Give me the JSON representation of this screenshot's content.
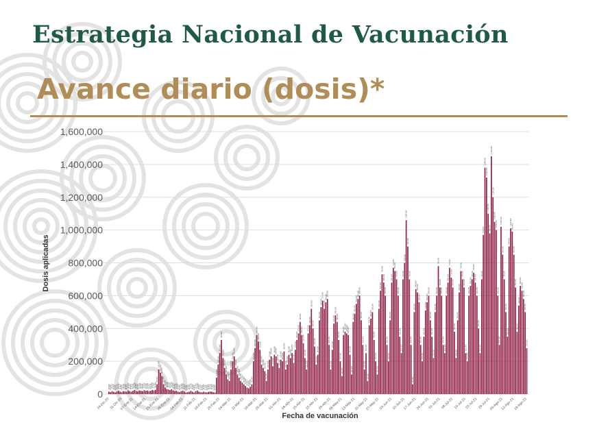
{
  "title": "Estrategia Nacional de Vacunación",
  "subtitle": "Avance diario (dosis)*",
  "colors": {
    "title": "#1f5a46",
    "subtitle": "#b08c57",
    "rule": "#b08c57",
    "bar": "#8f2145",
    "grid": "#dedede",
    "axis_text": "#595959",
    "pattern": "#e3e3e3"
  },
  "chart_data": {
    "type": "bar",
    "title": "",
    "xlabel": "Fecha de vacunación",
    "ylabel": "Dosis aplicadas",
    "ylim": [
      0,
      1600000
    ],
    "yticks": [
      0,
      200000,
      400000,
      600000,
      800000,
      1000000,
      1200000,
      1400000,
      1600000
    ],
    "ytick_labels": [
      "0",
      "200,000",
      "400,000",
      "600,000",
      "800,000",
      "1,000,000",
      "1,200,000",
      "1,400,000",
      "1,600,000"
    ],
    "grid": true,
    "legend": "none",
    "series": [
      {
        "values": [
          15000,
          12000,
          18000,
          14000,
          10000,
          16000,
          20000,
          15000,
          12000,
          18000,
          16000,
          14000,
          22000,
          18000,
          15000,
          20000,
          25000,
          18000,
          16000,
          22000,
          20000,
          18000,
          24000,
          20000,
          22000,
          18000,
          20000,
          25000,
          22000,
          26000,
          60000,
          150000,
          130000,
          110000,
          60000,
          40000,
          30000,
          28000,
          25000,
          30000,
          22000,
          18000,
          20000,
          15000,
          12000,
          18000,
          20000,
          15000,
          10000,
          12000,
          15000,
          20000,
          15000,
          10000,
          18000,
          22000,
          15000,
          12000,
          10000,
          15000,
          12000,
          10000,
          14000,
          16000,
          15000,
          12000,
          10000,
          100000,
          180000,
          250000,
          330000,
          220000,
          160000,
          120000,
          90000,
          80000,
          150000,
          200000,
          230000,
          160000,
          120000,
          100000,
          80000,
          70000,
          60000,
          50000,
          40000,
          35000,
          45000,
          60000,
          200000,
          280000,
          360000,
          320000,
          270000,
          180000,
          160000,
          140000,
          80000,
          150000,
          210000,
          230000,
          170000,
          240000,
          230000,
          190000,
          160000,
          210000,
          200000,
          260000,
          150000,
          180000,
          240000,
          220000,
          250000,
          190000,
          270000,
          330000,
          370000,
          440000,
          360000,
          310000,
          220000,
          150000,
          370000,
          420000,
          520000,
          400000,
          290000,
          180000,
          240000,
          450000,
          530000,
          570000,
          520000,
          560000,
          580000,
          300000,
          150000,
          270000,
          430000,
          480000,
          440000,
          330000,
          200000,
          110000,
          360000,
          380000,
          370000,
          360000,
          240000,
          120000,
          440000,
          490000,
          550000,
          580000,
          600000,
          450000,
          300000,
          150000,
          250000,
          80000,
          420000,
          460000,
          500000,
          330000,
          200000,
          120000,
          520000,
          630000,
          730000,
          680000,
          600000,
          300000,
          200000,
          450000,
          680000,
          770000,
          750000,
          700000,
          600000,
          350000,
          250000,
          700000,
          800000,
          1060000,
          900000,
          700000,
          300000,
          60000,
          500000,
          640000,
          620000,
          560000,
          300000,
          200000,
          350000,
          510000,
          560000,
          600000,
          450000,
          350000,
          220000,
          500000,
          600000,
          780000,
          650000,
          600000,
          300000,
          250000,
          600000,
          680000,
          770000,
          710000,
          650000,
          380000,
          220000,
          450000,
          620000,
          750000,
          700000,
          650000,
          250000,
          200000,
          600000,
          660000,
          700000,
          740000,
          680000,
          600000,
          400000,
          250000,
          700000,
          970000,
          1380000,
          1320000,
          1100000,
          980000,
          1450000,
          1200000,
          1050000,
          1000000,
          600000,
          300000,
          1020000,
          850000,
          700000,
          500000,
          350000,
          900000,
          1010000,
          990000,
          850000,
          650000,
          380000,
          540000,
          660000,
          630000,
          580000,
          500000,
          280000
        ]
      }
    ],
    "xtick_labels": [
      "24-Dic-20",
      "31-Dic-20",
      "07-Ene-21",
      "14-Ene-21",
      "21-Ene-21",
      "28-Ene-21",
      "04-Feb-21",
      "11-Feb-21",
      "18-Feb-21",
      "25-Feb-21",
      "04-Mar-21",
      "11-Mar-21",
      "18-Mar-21",
      "25-Mar-21",
      "01-Abr-21",
      "08-Abr-21",
      "15-Abr-21",
      "22-Abr-21",
      "29-Abr-21",
      "06-May-21",
      "13-May-21",
      "20-May-21",
      "27-May-21",
      "03-Jun-21",
      "10-Jun-21",
      "17-Jun-21",
      "24-Jun-21",
      "01-Jul-21",
      "08-Jul-21",
      "15-Jul-21",
      "22-Jul-21",
      "29-Jul-21",
      "05-Ago-21",
      "12-Ago-21",
      "19-Ago-21"
    ]
  }
}
